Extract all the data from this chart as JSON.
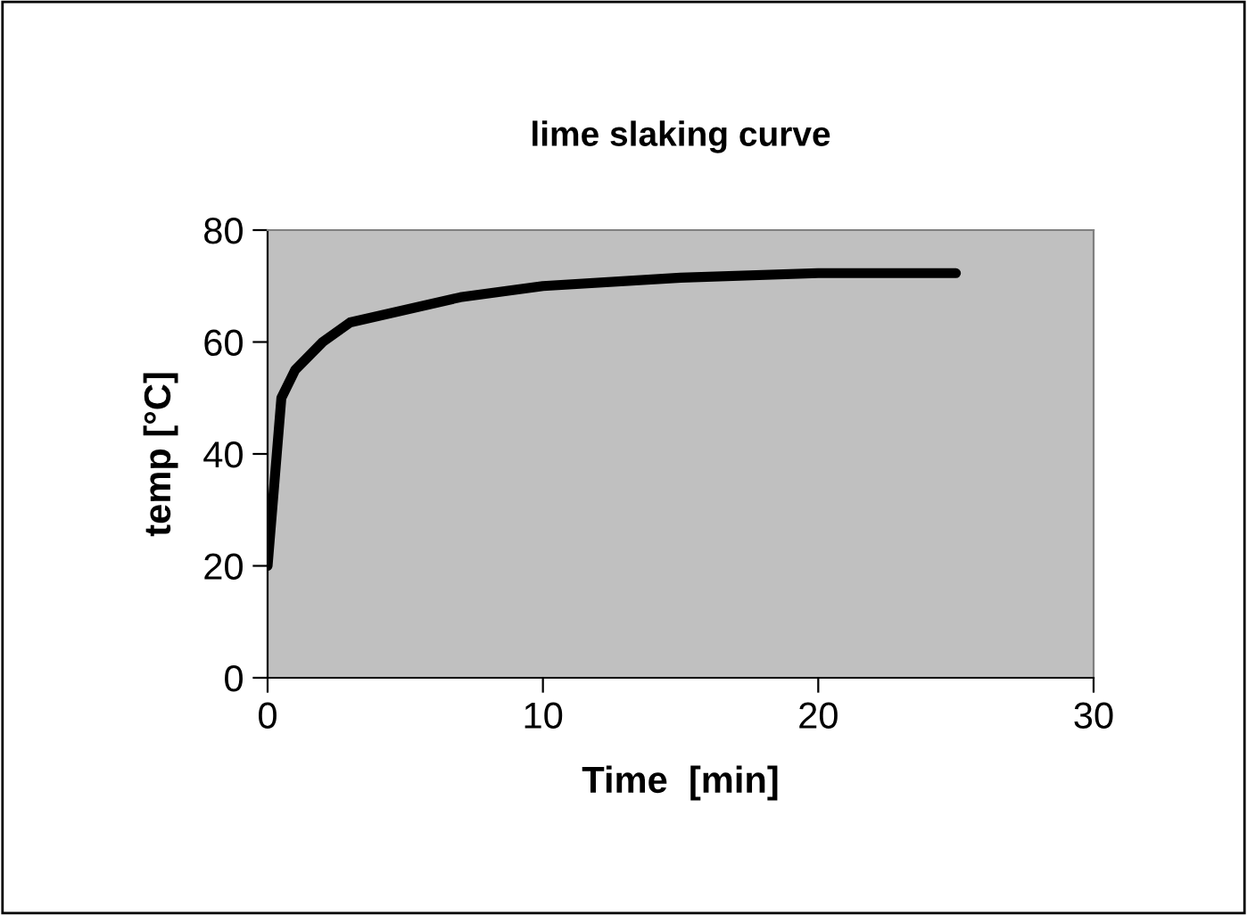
{
  "chart_data": {
    "type": "line",
    "title": "lime slaking curve",
    "xlabel": "Time  [min]",
    "ylabel": "temp [°C]",
    "x": [
      0,
      0.5,
      1,
      2,
      3,
      7,
      10,
      15,
      20,
      25
    ],
    "series": [
      {
        "color": "#000000",
        "values": [
          20,
          50,
          55,
          60,
          63.5,
          68,
          70,
          71.5,
          72.3,
          72.3
        ]
      }
    ],
    "xlim": [
      0,
      30
    ],
    "xticks": [
      0,
      10,
      20,
      30
    ],
    "ylim": [
      0,
      80
    ],
    "yticks": [
      0,
      20,
      40,
      60,
      80
    ],
    "grid": false,
    "legend": false,
    "marker": "none",
    "line_style": "solid"
  }
}
